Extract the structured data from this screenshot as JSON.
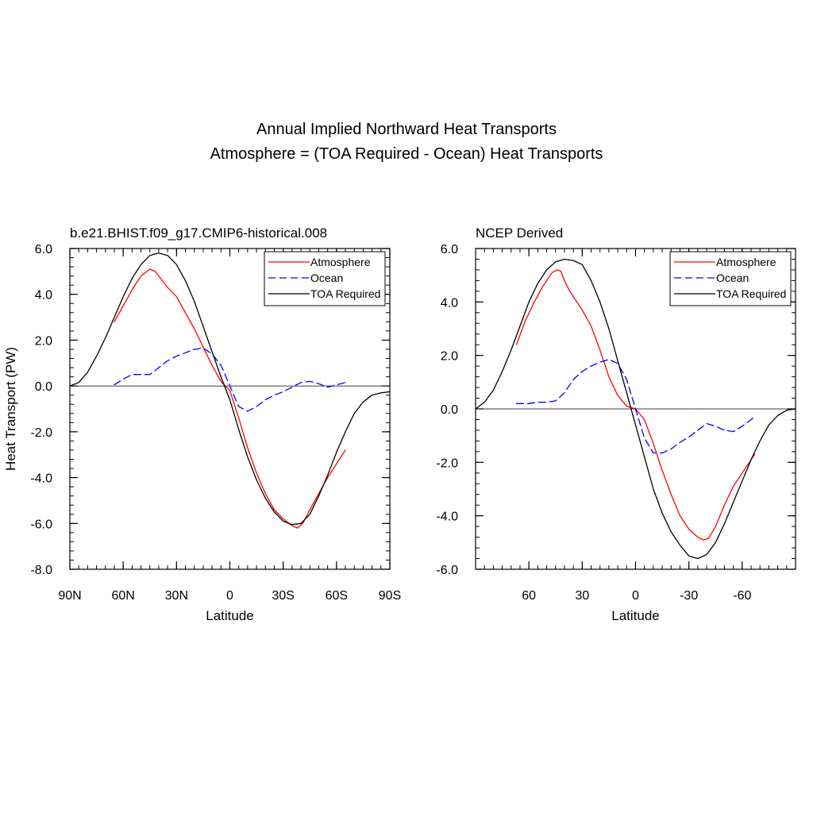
{
  "figure": {
    "title_line1": "Annual Implied Northward Heat Transports",
    "title_line2": "Atmosphere = (TOA Required - Ocean) Heat Transports"
  },
  "chart_data": [
    {
      "type": "line",
      "title": "b.e21.BHIST.f09_g17.CMIP6-historical.008",
      "xlabel": "Latitude",
      "ylabel": "Heat Transport (PW)",
      "xlim": [
        90,
        -90
      ],
      "ylim": [
        -8,
        6
      ],
      "x_tick_values": [
        90,
        60,
        30,
        0,
        -30,
        -60,
        -90
      ],
      "x_tick_labels": [
        "90N",
        "60N",
        "30N",
        "0",
        "30S",
        "60S",
        "90S"
      ],
      "y_tick_values": [
        6,
        4,
        2,
        0,
        -2,
        -4,
        -6,
        -8
      ],
      "y_tick_labels": [
        "6.0",
        "4.0",
        "2.0",
        "0.0",
        "-2.0",
        "-4.0",
        "-6.0",
        "-8.0"
      ],
      "zero_line": true,
      "legend_position": "top-right",
      "series": [
        {
          "name": "Atmosphere",
          "color": "#ff0000",
          "dash": "solid",
          "x": [
            65,
            60,
            55,
            50,
            45,
            42,
            38,
            35,
            30,
            25,
            20,
            15,
            10,
            5,
            0,
            -5,
            -10,
            -15,
            -20,
            -25,
            -30,
            -35,
            -38,
            -41,
            -45,
            -50,
            -55,
            -60,
            -65
          ],
          "y": [
            2.8,
            3.5,
            4.2,
            4.8,
            5.1,
            5.0,
            4.6,
            4.3,
            3.9,
            3.2,
            2.5,
            1.7,
            0.9,
            0.2,
            -0.2,
            -1.4,
            -2.7,
            -3.8,
            -4.7,
            -5.4,
            -5.8,
            -6.1,
            -6.2,
            -6.0,
            -5.4,
            -4.7,
            -4.0,
            -3.4,
            -2.8
          ]
        },
        {
          "name": "Ocean",
          "color": "#0000ff",
          "dash": "dashed",
          "x": [
            65,
            60,
            55,
            50,
            45,
            40,
            35,
            30,
            25,
            20,
            15,
            10,
            5,
            0,
            -5,
            -10,
            -15,
            -20,
            -25,
            -30,
            -35,
            -40,
            -45,
            -50,
            -55,
            -60,
            -65
          ],
          "y": [
            0.05,
            0.3,
            0.5,
            0.5,
            0.5,
            0.8,
            1.1,
            1.3,
            1.45,
            1.6,
            1.65,
            1.4,
            0.9,
            0.0,
            -0.9,
            -1.1,
            -0.9,
            -0.6,
            -0.4,
            -0.25,
            -0.05,
            0.15,
            0.2,
            0.1,
            -0.05,
            0.05,
            0.15
          ]
        },
        {
          "name": "TOA Required",
          "color": "#000000",
          "dash": "solid",
          "x": [
            90,
            85,
            80,
            75,
            70,
            65,
            60,
            55,
            50,
            45,
            40,
            35,
            30,
            25,
            20,
            15,
            10,
            5,
            0,
            -5,
            -10,
            -15,
            -20,
            -25,
            -30,
            -35,
            -40,
            -45,
            -50,
            -55,
            -60,
            -65,
            -70,
            -75,
            -80,
            -85,
            -90
          ],
          "y": [
            0.0,
            0.15,
            0.6,
            1.3,
            2.1,
            3.0,
            3.9,
            4.7,
            5.3,
            5.7,
            5.8,
            5.7,
            5.3,
            4.6,
            3.7,
            2.6,
            1.5,
            0.4,
            -0.6,
            -1.9,
            -3.1,
            -4.1,
            -4.9,
            -5.5,
            -5.9,
            -6.05,
            -6.0,
            -5.6,
            -4.8,
            -3.9,
            -2.9,
            -2.0,
            -1.2,
            -0.7,
            -0.4,
            -0.3,
            -0.25
          ]
        }
      ]
    },
    {
      "type": "line",
      "title": "NCEP Derived",
      "xlabel": "Latitude",
      "ylabel": "",
      "xlim": [
        90,
        -90
      ],
      "ylim": [
        -6,
        6
      ],
      "x_tick_values": [
        60,
        30,
        0,
        -30,
        -60
      ],
      "x_tick_labels": [
        "60",
        "30",
        "0",
        "-30",
        "-60"
      ],
      "y_tick_values": [
        6,
        4,
        2,
        0,
        -2,
        -4,
        -6
      ],
      "y_tick_labels": [
        "6.0",
        "4.0",
        "2.0",
        "0.0",
        "-2.0",
        "-4.0",
        "-6.0"
      ],
      "zero_line": true,
      "legend_position": "top-right",
      "series": [
        {
          "name": "Atmosphere",
          "color": "#ff0000",
          "dash": "solid",
          "x": [
            67,
            62,
            57,
            52,
            47,
            44,
            42,
            40,
            37,
            34,
            30,
            25,
            20,
            15,
            10,
            5,
            0,
            -5,
            -10,
            -15,
            -20,
            -25,
            -30,
            -35,
            -38,
            -41,
            -45,
            -50,
            -55,
            -60,
            -67
          ],
          "y": [
            2.4,
            3.3,
            4.0,
            4.6,
            5.1,
            5.2,
            5.15,
            4.8,
            4.4,
            4.1,
            3.7,
            3.1,
            2.2,
            1.2,
            0.5,
            0.1,
            0.0,
            -0.4,
            -1.3,
            -2.3,
            -3.2,
            -4.0,
            -4.5,
            -4.8,
            -4.9,
            -4.85,
            -4.4,
            -3.6,
            -2.9,
            -2.4,
            -1.7
          ]
        },
        {
          "name": "Ocean",
          "color": "#0000ff",
          "dash": "dashed",
          "x": [
            67,
            60,
            55,
            50,
            45,
            40,
            35,
            30,
            25,
            20,
            15,
            10,
            5,
            0,
            -5,
            -10,
            -15,
            -20,
            -25,
            -30,
            -35,
            -40,
            -45,
            -50,
            -55,
            -60,
            -67
          ],
          "y": [
            0.2,
            0.2,
            0.25,
            0.25,
            0.3,
            0.6,
            1.1,
            1.4,
            1.6,
            1.75,
            1.85,
            1.7,
            1.1,
            0.0,
            -1.1,
            -1.65,
            -1.65,
            -1.5,
            -1.25,
            -1.05,
            -0.8,
            -0.55,
            -0.65,
            -0.8,
            -0.85,
            -0.65,
            -0.3
          ]
        },
        {
          "name": "TOA Required",
          "color": "#000000",
          "dash": "solid",
          "x": [
            90,
            85,
            80,
            75,
            70,
            65,
            60,
            55,
            50,
            45,
            40,
            35,
            30,
            25,
            20,
            15,
            10,
            5,
            0,
            -5,
            -10,
            -15,
            -20,
            -25,
            -30,
            -35,
            -40,
            -45,
            -50,
            -55,
            -60,
            -65,
            -70,
            -75,
            -80,
            -85,
            -90
          ],
          "y": [
            0.0,
            0.25,
            0.7,
            1.4,
            2.2,
            3.1,
            4.0,
            4.7,
            5.2,
            5.5,
            5.6,
            5.55,
            5.4,
            4.8,
            4.0,
            3.0,
            1.8,
            0.6,
            -0.6,
            -1.8,
            -3.0,
            -3.9,
            -4.6,
            -5.1,
            -5.5,
            -5.6,
            -5.45,
            -5.0,
            -4.3,
            -3.5,
            -2.7,
            -1.9,
            -1.2,
            -0.6,
            -0.25,
            -0.05,
            0.0
          ]
        }
      ]
    }
  ]
}
